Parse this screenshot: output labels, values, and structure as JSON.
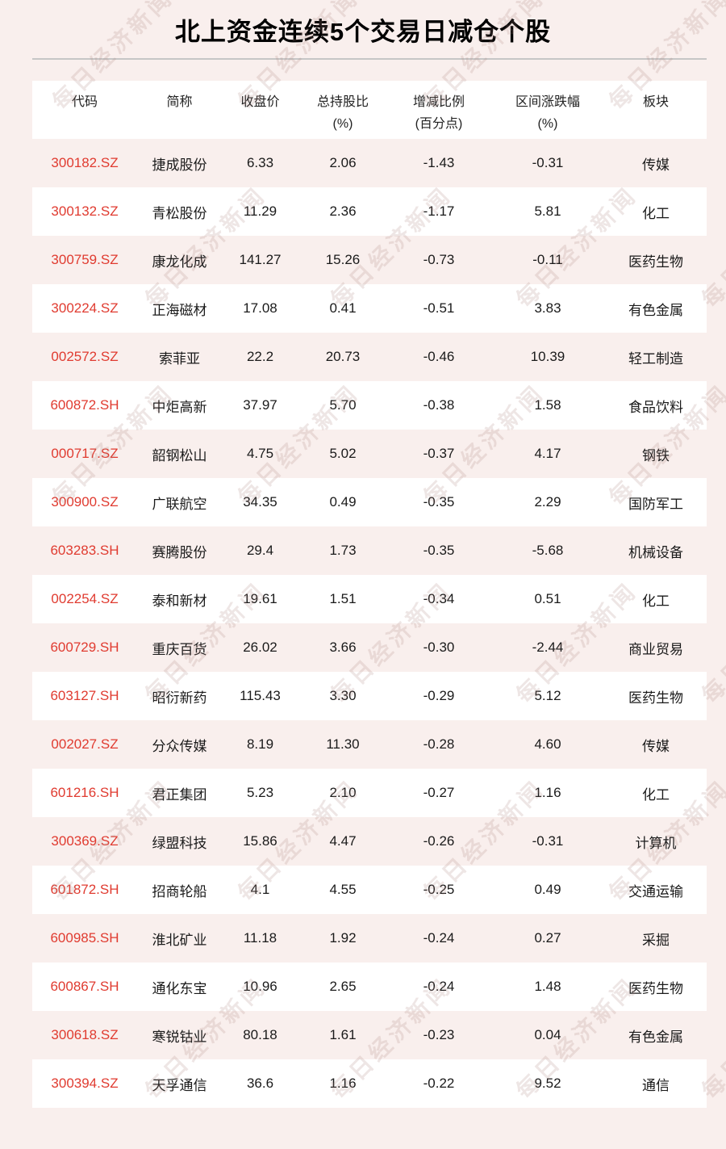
{
  "page": {
    "title": "北上资金连续5个交易日减仓个股",
    "watermark_text": "每日经济新闻"
  },
  "colors": {
    "page_bg": "#f9efed",
    "card_white": "#ffffff",
    "code_red": "#e03b30",
    "divider": "#c6c6c6",
    "text": "#1a1a1a"
  },
  "table": {
    "headers": [
      {
        "line1": "代码",
        "line2": ""
      },
      {
        "line1": "简称",
        "line2": ""
      },
      {
        "line1": "收盘价",
        "line2": ""
      },
      {
        "line1": "总持股比",
        "line2": "(%)"
      },
      {
        "line1": "增减比例",
        "line2": "(百分点)"
      },
      {
        "line1": "区间涨跌幅",
        "line2": "(%)"
      },
      {
        "line1": "板块",
        "line2": ""
      }
    ],
    "rows": [
      {
        "code": "300182.SZ",
        "name": "捷成股份",
        "close": "6.33",
        "holding": "2.06",
        "change": "-1.43",
        "interval": "-0.31",
        "sector": "传媒"
      },
      {
        "code": "300132.SZ",
        "name": "青松股份",
        "close": "11.29",
        "holding": "2.36",
        "change": "-1.17",
        "interval": "5.81",
        "sector": "化工"
      },
      {
        "code": "300759.SZ",
        "name": "康龙化成",
        "close": "141.27",
        "holding": "15.26",
        "change": "-0.73",
        "interval": "-0.11",
        "sector": "医药生物"
      },
      {
        "code": "300224.SZ",
        "name": "正海磁材",
        "close": "17.08",
        "holding": "0.41",
        "change": "-0.51",
        "interval": "3.83",
        "sector": "有色金属"
      },
      {
        "code": "002572.SZ",
        "name": "索菲亚",
        "close": "22.2",
        "holding": "20.73",
        "change": "-0.46",
        "interval": "10.39",
        "sector": "轻工制造"
      },
      {
        "code": "600872.SH",
        "name": "中炬高新",
        "close": "37.97",
        "holding": "5.70",
        "change": "-0.38",
        "interval": "1.58",
        "sector": "食品饮料"
      },
      {
        "code": "000717.SZ",
        "name": "韶钢松山",
        "close": "4.75",
        "holding": "5.02",
        "change": "-0.37",
        "interval": "4.17",
        "sector": "钢铁"
      },
      {
        "code": "300900.SZ",
        "name": "广联航空",
        "close": "34.35",
        "holding": "0.49",
        "change": "-0.35",
        "interval": "2.29",
        "sector": "国防军工"
      },
      {
        "code": "603283.SH",
        "name": "赛腾股份",
        "close": "29.4",
        "holding": "1.73",
        "change": "-0.35",
        "interval": "-5.68",
        "sector": "机械设备"
      },
      {
        "code": "002254.SZ",
        "name": "泰和新材",
        "close": "19.61",
        "holding": "1.51",
        "change": "-0.34",
        "interval": "0.51",
        "sector": "化工"
      },
      {
        "code": "600729.SH",
        "name": "重庆百货",
        "close": "26.02",
        "holding": "3.66",
        "change": "-0.30",
        "interval": "-2.44",
        "sector": "商业贸易"
      },
      {
        "code": "603127.SH",
        "name": "昭衍新药",
        "close": "115.43",
        "holding": "3.30",
        "change": "-0.29",
        "interval": "5.12",
        "sector": "医药生物"
      },
      {
        "code": "002027.SZ",
        "name": "分众传媒",
        "close": "8.19",
        "holding": "11.30",
        "change": "-0.28",
        "interval": "4.60",
        "sector": "传媒"
      },
      {
        "code": "601216.SH",
        "name": "君正集团",
        "close": "5.23",
        "holding": "2.10",
        "change": "-0.27",
        "interval": "1.16",
        "sector": "化工"
      },
      {
        "code": "300369.SZ",
        "name": "绿盟科技",
        "close": "15.86",
        "holding": "4.47",
        "change": "-0.26",
        "interval": "-0.31",
        "sector": "计算机"
      },
      {
        "code": "601872.SH",
        "name": "招商轮船",
        "close": "4.1",
        "holding": "4.55",
        "change": "-0.25",
        "interval": "0.49",
        "sector": "交通运输"
      },
      {
        "code": "600985.SH",
        "name": "淮北矿业",
        "close": "11.18",
        "holding": "1.92",
        "change": "-0.24",
        "interval": "0.27",
        "sector": "采掘"
      },
      {
        "code": "600867.SH",
        "name": "通化东宝",
        "close": "10.96",
        "holding": "2.65",
        "change": "-0.24",
        "interval": "1.48",
        "sector": "医药生物"
      },
      {
        "code": "300618.SZ",
        "name": "寒锐钴业",
        "close": "80.18",
        "holding": "1.61",
        "change": "-0.23",
        "interval": "0.04",
        "sector": "有色金属"
      },
      {
        "code": "300394.SZ",
        "name": "天孚通信",
        "close": "36.6",
        "holding": "1.16",
        "change": "-0.22",
        "interval": "9.52",
        "sector": "通信"
      }
    ]
  },
  "chart_data": {
    "type": "table",
    "title": "北上资金连续5个交易日减仓个股",
    "columns": [
      "代码",
      "简称",
      "收盘价",
      "总持股比(%)",
      "增减比例(百分点)",
      "区间涨跌幅(%)",
      "板块"
    ],
    "rows": [
      [
        "300182.SZ",
        "捷成股份",
        6.33,
        2.06,
        -1.43,
        -0.31,
        "传媒"
      ],
      [
        "300132.SZ",
        "青松股份",
        11.29,
        2.36,
        -1.17,
        5.81,
        "化工"
      ],
      [
        "300759.SZ",
        "康龙化成",
        141.27,
        15.26,
        -0.73,
        -0.11,
        "医药生物"
      ],
      [
        "300224.SZ",
        "正海磁材",
        17.08,
        0.41,
        -0.51,
        3.83,
        "有色金属"
      ],
      [
        "002572.SZ",
        "索菲亚",
        22.2,
        20.73,
        -0.46,
        10.39,
        "轻工制造"
      ],
      [
        "600872.SH",
        "中炬高新",
        37.97,
        5.7,
        -0.38,
        1.58,
        "食品饮料"
      ],
      [
        "000717.SZ",
        "韶钢松山",
        4.75,
        5.02,
        -0.37,
        4.17,
        "钢铁"
      ],
      [
        "300900.SZ",
        "广联航空",
        34.35,
        0.49,
        -0.35,
        2.29,
        "国防军工"
      ],
      [
        "603283.SH",
        "赛腾股份",
        29.4,
        1.73,
        -0.35,
        -5.68,
        "机械设备"
      ],
      [
        "002254.SZ",
        "泰和新材",
        19.61,
        1.51,
        -0.34,
        0.51,
        "化工"
      ],
      [
        "600729.SH",
        "重庆百货",
        26.02,
        3.66,
        -0.3,
        -2.44,
        "商业贸易"
      ],
      [
        "603127.SH",
        "昭衍新药",
        115.43,
        3.3,
        -0.29,
        5.12,
        "医药生物"
      ],
      [
        "002027.SZ",
        "分众传媒",
        8.19,
        11.3,
        -0.28,
        4.6,
        "传媒"
      ],
      [
        "601216.SH",
        "君正集团",
        5.23,
        2.1,
        -0.27,
        1.16,
        "化工"
      ],
      [
        "300369.SZ",
        "绿盟科技",
        15.86,
        4.47,
        -0.26,
        -0.31,
        "计算机"
      ],
      [
        "601872.SH",
        "招商轮船",
        4.1,
        4.55,
        -0.25,
        0.49,
        "交通运输"
      ],
      [
        "600985.SH",
        "淮北矿业",
        11.18,
        1.92,
        -0.24,
        0.27,
        "采掘"
      ],
      [
        "600867.SH",
        "通化东宝",
        10.96,
        2.65,
        -0.24,
        1.48,
        "医药生物"
      ],
      [
        "300618.SZ",
        "寒锐钴业",
        80.18,
        1.61,
        -0.23,
        0.04,
        "有色金属"
      ],
      [
        "300394.SZ",
        "天孚通信",
        36.6,
        1.16,
        -0.22,
        9.52,
        "通信"
      ]
    ]
  }
}
